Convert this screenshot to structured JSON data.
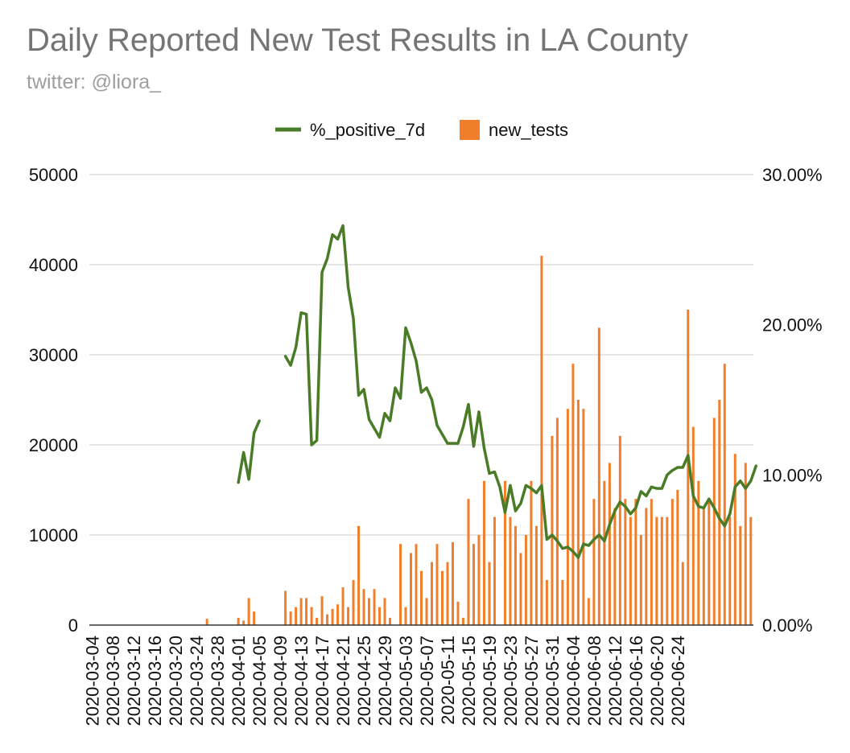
{
  "chart_data": {
    "type": "bar",
    "title": "Daily Reported New Test Results in LA County",
    "subtitle": "twitter: @liora_",
    "start_date": "2020-03-04",
    "x_tick_labels": [
      "2020-03-04",
      "2020-03-08",
      "2020-03-12",
      "2020-03-16",
      "2020-03-20",
      "2020-03-24",
      "2020-03-28",
      "2020-04-01",
      "2020-04-05",
      "2020-04-09",
      "2020-04-13",
      "2020-04-17",
      "2020-04-21",
      "2020-04-25",
      "2020-04-29",
      "2020-05-03",
      "2020-05-07",
      "2020-05-11",
      "2020-05-15",
      "2020-05-19",
      "2020-05-23",
      "2020-05-27",
      "2020-05-31",
      "2020-06-04",
      "2020-06-08",
      "2020-06-12",
      "2020-06-16",
      "2020-06-20",
      "2020-06-24"
    ],
    "y_left": {
      "ticks": [
        "0",
        "10000",
        "20000",
        "30000",
        "40000",
        "50000"
      ],
      "range": [
        0,
        50000
      ]
    },
    "y_right": {
      "ticks": [
        "0.00%",
        "10.00%",
        "20.00%",
        "30.00%"
      ],
      "range": [
        0,
        30
      ]
    },
    "grid": true,
    "legend": {
      "position": "top",
      "entries": [
        {
          "name": "%_positive_7d",
          "color": "#4a7b27"
        },
        {
          "name": "new_tests",
          "color": "#f07e2b"
        }
      ]
    },
    "series": [
      {
        "name": "new_tests",
        "type": "bar",
        "axis": "left",
        "color": "#f07e2b",
        "values": [
          0,
          0,
          0,
          0,
          0,
          0,
          0,
          0,
          0,
          0,
          0,
          0,
          0,
          0,
          0,
          0,
          0,
          0,
          0,
          0,
          0,
          0,
          700,
          0,
          0,
          0,
          0,
          0,
          800,
          500,
          3000,
          1500,
          0,
          0,
          0,
          0,
          0,
          3800,
          1500,
          2000,
          3000,
          3000,
          2000,
          800,
          3200,
          1200,
          1800,
          2300,
          4200,
          2000,
          5000,
          11000,
          4000,
          3000,
          4000,
          2000,
          3000,
          800,
          0,
          9000,
          2000,
          8000,
          9000,
          6000,
          3000,
          7000,
          9000,
          6000,
          7000,
          9200,
          2600,
          800,
          14000,
          9000,
          10000,
          16000,
          7000,
          12000,
          0,
          16000,
          12000,
          11000,
          8000,
          10000,
          16000,
          11000,
          41000,
          5000,
          21000,
          23000,
          5000,
          24000,
          29000,
          25000,
          24000,
          3000,
          14000,
          33000,
          16000,
          18000,
          13000,
          21000,
          14000,
          12000,
          14000,
          10000,
          13000,
          14000,
          12000,
          12000,
          12000,
          14000,
          15000,
          7000,
          35000,
          22000,
          16000,
          13000,
          14000,
          23000,
          25000,
          29000,
          12000,
          19000,
          11000,
          18000,
          12000
        ]
      },
      {
        "name": "%_positive_7d",
        "type": "line",
        "axis": "right",
        "color": "#4a7b27",
        "values": [
          null,
          null,
          null,
          null,
          null,
          null,
          null,
          null,
          null,
          null,
          null,
          null,
          null,
          null,
          null,
          null,
          null,
          null,
          null,
          null,
          null,
          null,
          null,
          null,
          null,
          null,
          null,
          null,
          9.5,
          11.5,
          9.7,
          12.8,
          13.6,
          null,
          null,
          null,
          null,
          17.9,
          17.3,
          18.5,
          20.8,
          20.7,
          12,
          12.3,
          23.5,
          24.4,
          26,
          25.7,
          26.6,
          22.5,
          20.4,
          15.3,
          15.7,
          13.7,
          13.1,
          12.5,
          14.1,
          13.6,
          15.8,
          15.1,
          19.8,
          18.8,
          17.6,
          15.5,
          15.8,
          15,
          13.3,
          12.7,
          12.1,
          12.1,
          12.1,
          13.2,
          14.7,
          11.9,
          14.2,
          11.8,
          10.1,
          10.2,
          9.2,
          7.5,
          9.3,
          7.6,
          8.1,
          9.3,
          9.1,
          8.8,
          9.3,
          5.7,
          6,
          5.6,
          5.1,
          5.2,
          4.9,
          4.5,
          5.4,
          5.3,
          5.7,
          6,
          5.6,
          6.7,
          7.6,
          8.2,
          7.9,
          7.4,
          7.8,
          8.9,
          8.6,
          9.2,
          9.1,
          9.1,
          10,
          10.3,
          10.5,
          10.5,
          11.3,
          8.6,
          7.9,
          7.8,
          8.4,
          7.8,
          7.1,
          6.6,
          7.4,
          9.2,
          9.6,
          9.1,
          9.6,
          10.6
        ]
      }
    ]
  }
}
